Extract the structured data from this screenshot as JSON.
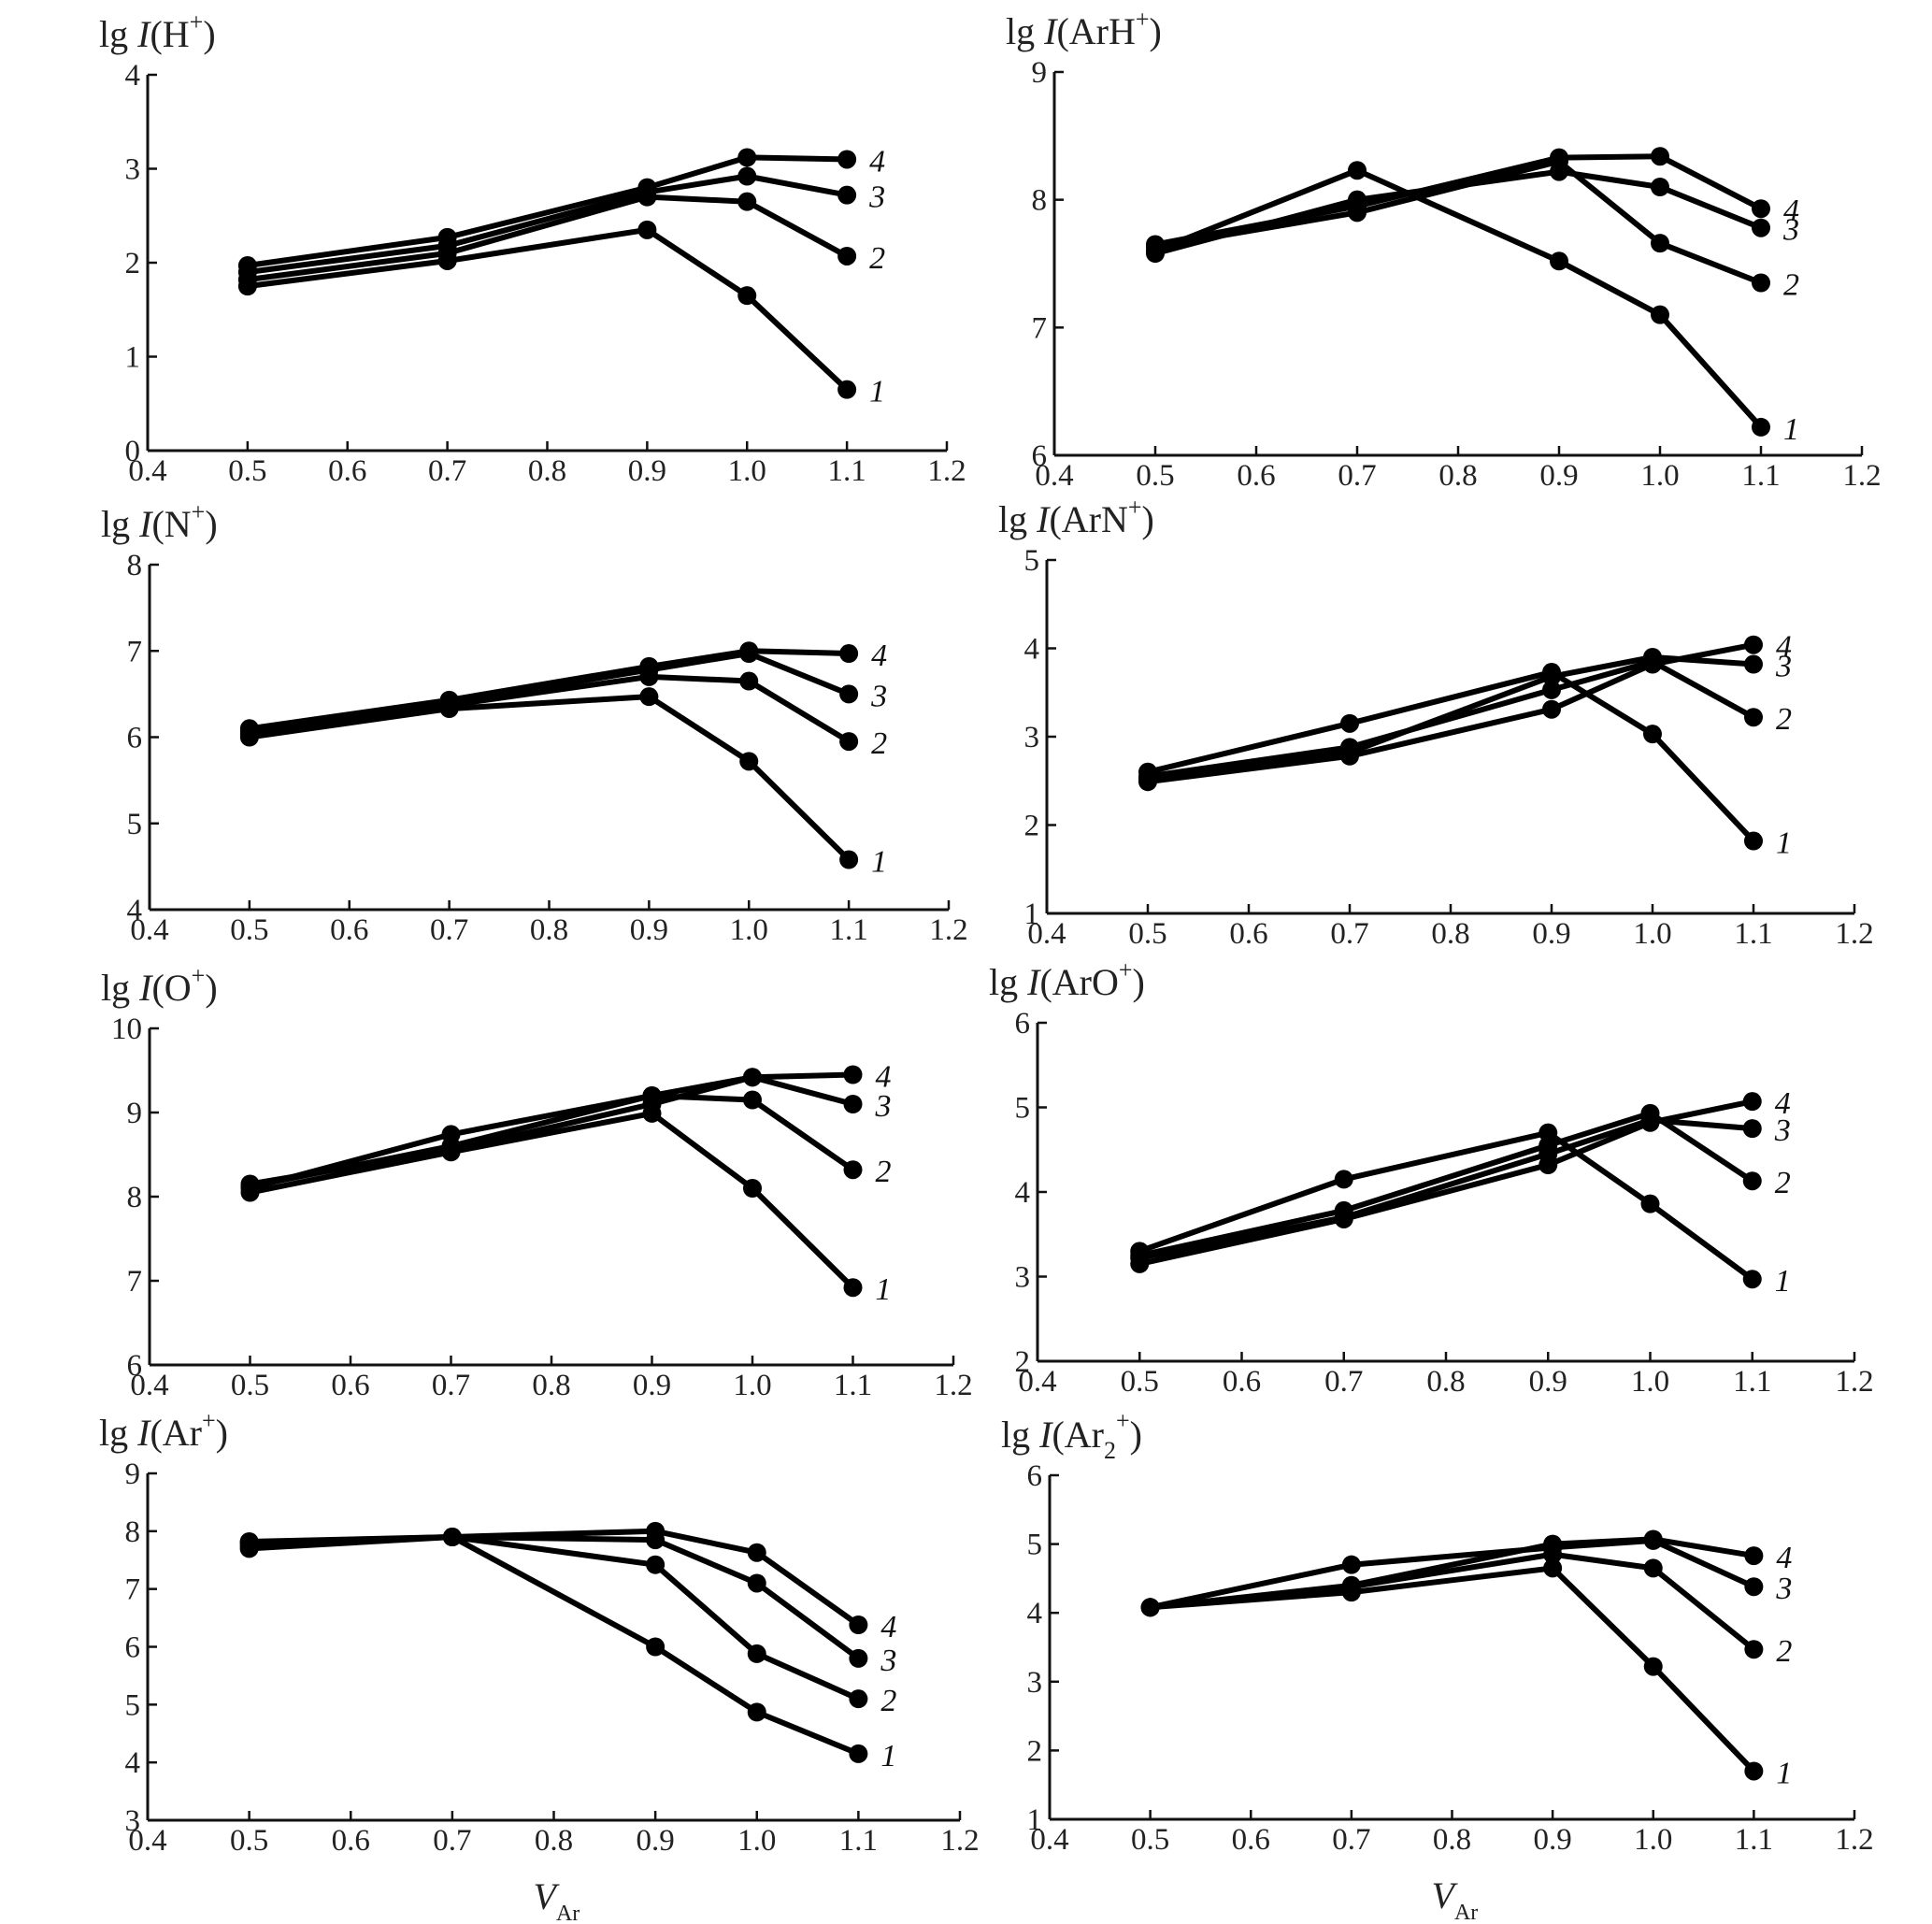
{
  "chart_data": [
    {
      "type": "line",
      "title_prefix": "lg ",
      "title_italic": "I",
      "title_species": "(H",
      "title_sub": "",
      "title_sup": "+",
      "title_suffix": ")",
      "xlabel_main": "",
      "xlabel_sub": "",
      "x": [
        0.5,
        0.7,
        0.9,
        1.0,
        1.1
      ],
      "xlim": [
        0.4,
        1.2
      ],
      "xticks": [
        0.4,
        0.5,
        0.6,
        0.7,
        0.8,
        0.9,
        1.0,
        1.1,
        1.2
      ],
      "xtick_labels": [
        "0.4",
        "0.5",
        "0.6",
        "0.7",
        "0.8",
        "0.9",
        "1.0",
        "1.1",
        "1.2"
      ],
      "ylim": [
        0,
        4
      ],
      "yticks": [
        0,
        1,
        2,
        3,
        4
      ],
      "ytick_labels": [
        "0",
        "1",
        "2",
        "3",
        "4"
      ],
      "series": [
        {
          "name": "1",
          "values": [
            1.75,
            2.02,
            2.35,
            1.65,
            0.65
          ]
        },
        {
          "name": "2",
          "values": [
            1.82,
            2.1,
            2.7,
            2.65,
            2.07
          ]
        },
        {
          "name": "3",
          "values": [
            1.9,
            2.18,
            2.75,
            2.92,
            2.72
          ]
        },
        {
          "name": "4",
          "values": [
            1.97,
            2.27,
            2.8,
            3.12,
            3.1
          ]
        }
      ]
    },
    {
      "type": "line",
      "title_prefix": "lg ",
      "title_italic": "I",
      "title_species": "(ArH",
      "title_sub": "",
      "title_sup": "+",
      "title_suffix": ")",
      "xlabel_main": "",
      "xlabel_sub": "",
      "x": [
        0.5,
        0.7,
        0.9,
        1.0,
        1.1
      ],
      "xlim": [
        0.4,
        1.2
      ],
      "xticks": [
        0.4,
        0.5,
        0.6,
        0.7,
        0.8,
        0.9,
        1.0,
        1.1,
        1.2
      ],
      "xtick_labels": [
        "0.4",
        "0.5",
        "0.6",
        "0.7",
        "0.8",
        "0.9",
        "1.0",
        "1.1",
        "1.2"
      ],
      "ylim": [
        6,
        9
      ],
      "yticks": [
        6,
        7,
        8,
        9
      ],
      "ytick_labels": [
        "6",
        "7",
        "8",
        "9"
      ],
      "series": [
        {
          "name": "1",
          "values": [
            7.6,
            8.23,
            7.52,
            7.1,
            6.22
          ]
        },
        {
          "name": "2",
          "values": [
            7.63,
            7.9,
            8.3,
            7.66,
            7.35
          ]
        },
        {
          "name": "3",
          "values": [
            7.58,
            8.0,
            8.22,
            8.1,
            7.78
          ]
        },
        {
          "name": "4",
          "values": [
            7.65,
            7.95,
            8.33,
            8.34,
            7.93
          ]
        }
      ]
    },
    {
      "type": "line",
      "title_prefix": "lg ",
      "title_italic": "I",
      "title_species": "(N",
      "title_sub": "",
      "title_sup": "+",
      "title_suffix": ")",
      "xlabel_main": "",
      "xlabel_sub": "",
      "x": [
        0.5,
        0.7,
        0.9,
        1.0,
        1.1
      ],
      "xlim": [
        0.4,
        1.2
      ],
      "xticks": [
        0.4,
        0.5,
        0.6,
        0.7,
        0.8,
        0.9,
        1.0,
        1.1,
        1.2
      ],
      "xtick_labels": [
        "0.4",
        "0.5",
        "0.6",
        "0.7",
        "0.8",
        "0.9",
        "1.0",
        "1.1",
        "1.2"
      ],
      "ylim": [
        4,
        8
      ],
      "yticks": [
        4,
        5,
        6,
        7,
        8
      ],
      "ytick_labels": [
        "4",
        "5",
        "6",
        "7",
        "8"
      ],
      "series": [
        {
          "name": "1",
          "values": [
            6.0,
            6.33,
            6.47,
            5.72,
            4.58
          ]
        },
        {
          "name": "2",
          "values": [
            6.03,
            6.37,
            6.7,
            6.65,
            5.95
          ]
        },
        {
          "name": "3",
          "values": [
            6.07,
            6.4,
            6.78,
            6.97,
            6.5
          ]
        },
        {
          "name": "4",
          "values": [
            6.1,
            6.43,
            6.82,
            7.0,
            6.97
          ]
        }
      ]
    },
    {
      "type": "line",
      "title_prefix": "lg ",
      "title_italic": "I",
      "title_species": "(ArN",
      "title_sub": "",
      "title_sup": "+",
      "title_suffix": ")",
      "xlabel_main": "",
      "xlabel_sub": "",
      "x": [
        0.5,
        0.7,
        0.9,
        1.0,
        1.1
      ],
      "xlim": [
        0.4,
        1.2
      ],
      "xticks": [
        0.4,
        0.5,
        0.6,
        0.7,
        0.8,
        0.9,
        1.0,
        1.1,
        1.2
      ],
      "xtick_labels": [
        "0.4",
        "0.5",
        "0.6",
        "0.7",
        "0.8",
        "0.9",
        "1.0",
        "1.1",
        "1.2"
      ],
      "ylim": [
        1,
        5
      ],
      "yticks": [
        1,
        2,
        3,
        4,
        5
      ],
      "ytick_labels": [
        "1",
        "2",
        "3",
        "4",
        "5"
      ],
      "series": [
        {
          "name": "1",
          "values": [
            2.6,
            3.15,
            3.73,
            3.03,
            1.82
          ]
        },
        {
          "name": "2",
          "values": [
            2.55,
            2.88,
            3.53,
            3.85,
            3.22
          ]
        },
        {
          "name": "3",
          "values": [
            2.52,
            2.82,
            3.68,
            3.9,
            3.82
          ]
        },
        {
          "name": "4",
          "values": [
            2.49,
            2.78,
            3.31,
            3.82,
            4.04
          ]
        }
      ]
    },
    {
      "type": "line",
      "title_prefix": "lg ",
      "title_italic": "I",
      "title_species": "(O",
      "title_sub": "",
      "title_sup": "+",
      "title_suffix": ")",
      "xlabel_main": "",
      "xlabel_sub": "",
      "x": [
        0.5,
        0.7,
        0.9,
        1.0,
        1.1
      ],
      "xlim": [
        0.4,
        1.2
      ],
      "xticks": [
        0.4,
        0.5,
        0.6,
        0.7,
        0.8,
        0.9,
        1.0,
        1.1,
        1.2
      ],
      "xtick_labels": [
        "0.4",
        "0.5",
        "0.6",
        "0.7",
        "0.8",
        "0.9",
        "1.0",
        "1.1",
        "1.2"
      ],
      "ylim": [
        6,
        10
      ],
      "yticks": [
        6,
        7,
        8,
        9,
        10
      ],
      "ytick_labels": [
        "6",
        "7",
        "8",
        "9",
        "10"
      ],
      "series": [
        {
          "name": "1",
          "values": [
            8.05,
            8.53,
            8.99,
            8.1,
            6.92
          ]
        },
        {
          "name": "2",
          "values": [
            8.1,
            8.74,
            9.2,
            9.15,
            8.32
          ]
        },
        {
          "name": "3",
          "values": [
            8.12,
            8.6,
            9.2,
            9.42,
            9.1
          ]
        },
        {
          "name": "4",
          "values": [
            8.15,
            8.55,
            9.1,
            9.42,
            9.45
          ]
        }
      ]
    },
    {
      "type": "line",
      "title_prefix": "lg ",
      "title_italic": "I",
      "title_species": "(ArO",
      "title_sub": "",
      "title_sup": "+",
      "title_suffix": ")",
      "xlabel_main": "",
      "xlabel_sub": "",
      "x": [
        0.5,
        0.7,
        0.9,
        1.0,
        1.1
      ],
      "xlim": [
        0.4,
        1.2
      ],
      "xticks": [
        0.4,
        0.5,
        0.6,
        0.7,
        0.8,
        0.9,
        1.0,
        1.1,
        1.2
      ],
      "xtick_labels": [
        "0.4",
        "0.5",
        "0.6",
        "0.7",
        "0.8",
        "0.9",
        "1.0",
        "1.1",
        "1.2"
      ],
      "ylim": [
        2,
        6
      ],
      "yticks": [
        2,
        3,
        4,
        5,
        6
      ],
      "ytick_labels": [
        "2",
        "3",
        "4",
        "5",
        "6"
      ],
      "series": [
        {
          "name": "1",
          "values": [
            3.3,
            4.15,
            4.7,
            3.86,
            2.97
          ]
        },
        {
          "name": "2",
          "values": [
            3.25,
            3.78,
            4.55,
            4.93,
            4.13
          ]
        },
        {
          "name": "3",
          "values": [
            3.22,
            3.7,
            4.45,
            4.85,
            4.75
          ]
        },
        {
          "name": "4",
          "values": [
            3.15,
            3.68,
            4.32,
            4.82,
            5.07
          ]
        }
      ]
    },
    {
      "type": "line",
      "title_prefix": "lg ",
      "title_italic": "I",
      "title_species": "(Ar",
      "title_sub": "",
      "title_sup": "+",
      "title_suffix": ")",
      "xlabel_main": "V",
      "xlabel_sub": "Ar",
      "x": [
        0.5,
        0.7,
        0.9,
        1.0,
        1.1
      ],
      "xlim": [
        0.4,
        1.2
      ],
      "xticks": [
        0.4,
        0.5,
        0.6,
        0.7,
        0.8,
        0.9,
        1.0,
        1.1,
        1.2
      ],
      "xtick_labels": [
        "0.4",
        "0.5",
        "0.6",
        "0.7",
        "0.8",
        "0.9",
        "1.0",
        "1.1",
        "1.2"
      ],
      "ylim": [
        3,
        9
      ],
      "yticks": [
        3,
        4,
        5,
        6,
        7,
        8,
        9
      ],
      "ytick_labels": [
        "3",
        "4",
        "5",
        "6",
        "7",
        "8",
        "9"
      ],
      "series": [
        {
          "name": "1",
          "values": [
            7.7,
            7.9,
            6.0,
            4.87,
            4.15
          ]
        },
        {
          "name": "2",
          "values": [
            7.75,
            7.9,
            7.42,
            5.88,
            5.1
          ]
        },
        {
          "name": "3",
          "values": [
            7.8,
            7.9,
            7.85,
            7.1,
            5.8
          ]
        },
        {
          "name": "4",
          "values": [
            7.82,
            7.9,
            8.0,
            7.63,
            6.38
          ]
        }
      ]
    },
    {
      "type": "line",
      "title_prefix": "lg ",
      "title_italic": "I",
      "title_species": "(Ar",
      "title_sub": "2",
      "title_sup": "+",
      "title_suffix": ")",
      "xlabel_main": "V",
      "xlabel_sub": "Ar",
      "x": [
        0.5,
        0.7,
        0.9,
        1.0,
        1.1
      ],
      "xlim": [
        0.4,
        1.2
      ],
      "xticks": [
        0.4,
        0.5,
        0.6,
        0.7,
        0.8,
        0.9,
        1.0,
        1.1,
        1.2
      ],
      "xtick_labels": [
        "0.4",
        "0.5",
        "0.6",
        "0.7",
        "0.8",
        "0.9",
        "1.0",
        "1.1",
        "1.2"
      ],
      "ylim": [
        1,
        6
      ],
      "yticks": [
        1,
        2,
        3,
        4,
        5,
        6
      ],
      "ytick_labels": [
        "1",
        "2",
        "3",
        "4",
        "5",
        "6"
      ],
      "series": [
        {
          "name": "1",
          "values": [
            4.08,
            4.3,
            4.65,
            3.22,
            1.7
          ]
        },
        {
          "name": "2",
          "values": [
            4.08,
            4.38,
            4.85,
            4.65,
            3.47
          ]
        },
        {
          "name": "3",
          "values": [
            4.08,
            4.7,
            4.95,
            5.05,
            4.38
          ]
        },
        {
          "name": "4",
          "values": [
            4.08,
            4.4,
            5.0,
            5.07,
            4.83
          ]
        }
      ]
    }
  ]
}
